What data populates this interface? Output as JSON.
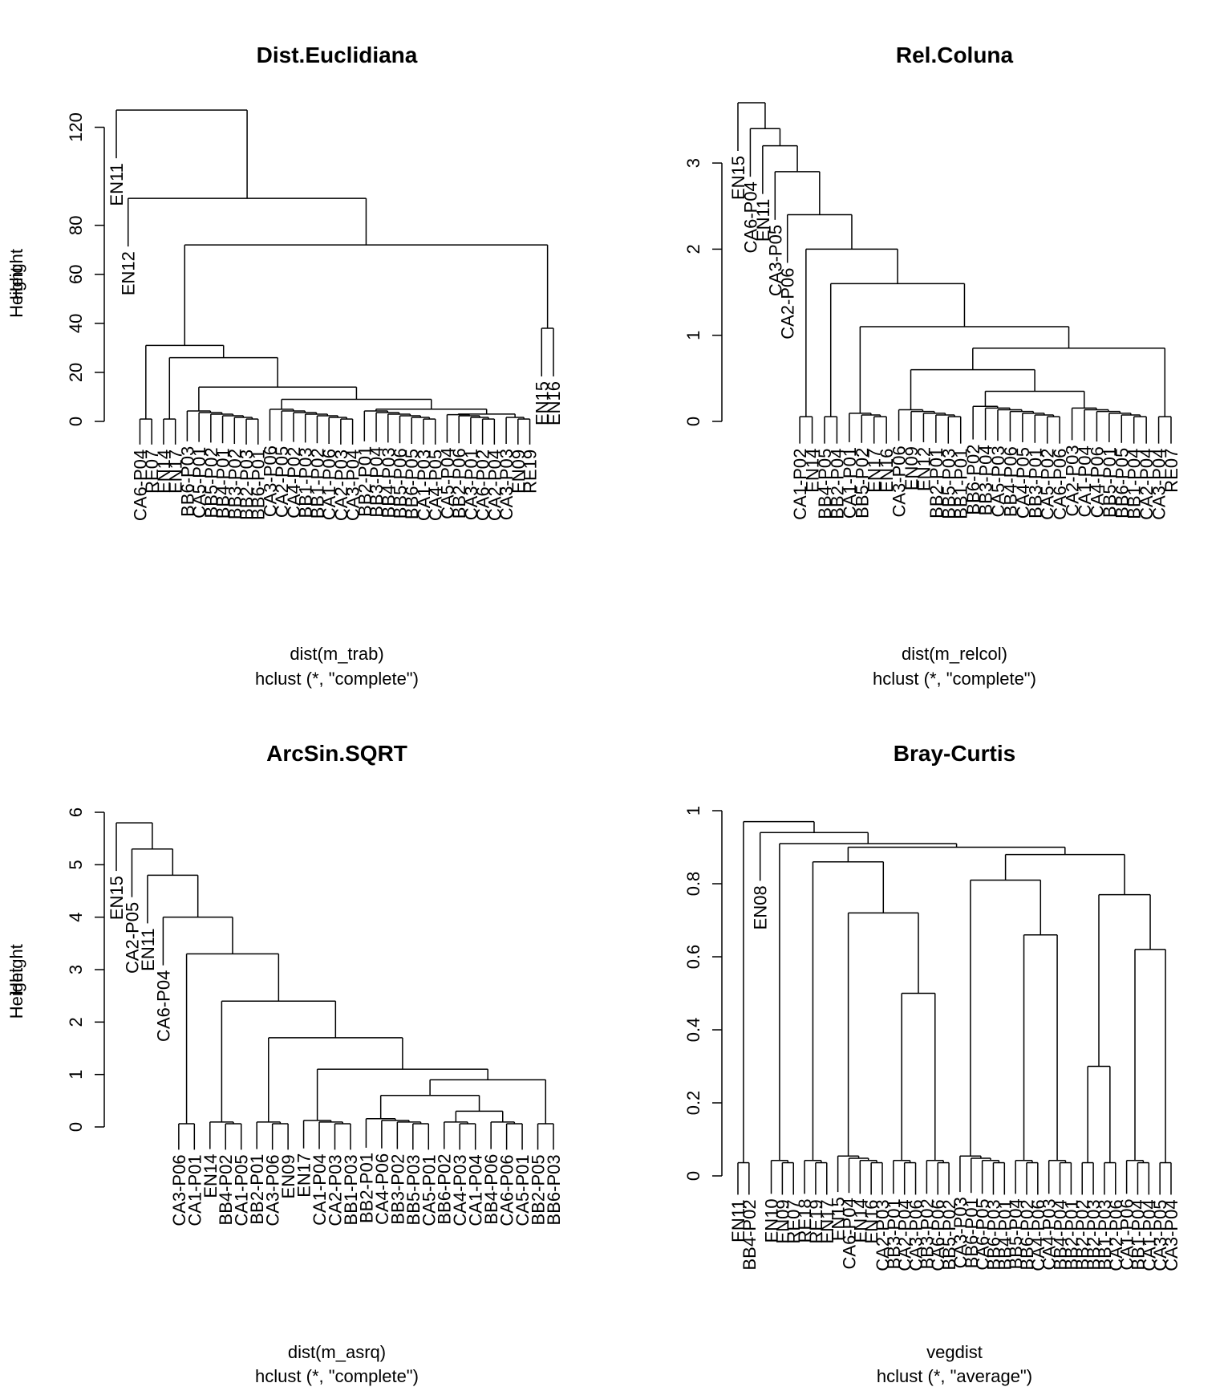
{
  "chart_data": [
    {
      "type": "dendrogram",
      "title": "Dist.Euclidiana",
      "ylabel": "Height",
      "xlabel": "dist(m_trab)",
      "sublabel": "hclust (*, \"complete\")",
      "ylim": [
        0,
        130
      ],
      "yticks": [
        0,
        20,
        40,
        60,
        80,
        120
      ],
      "leaves": [
        "EN11",
        "EN12",
        "CA6-P04",
        "RE07",
        "EN14",
        "EN17",
        "BB6-P03",
        "CA5-P01",
        "BB5-P02",
        "BB4-P01",
        "BB3-P02",
        "BB2-P03",
        "BB6-P01",
        "CA3-P06",
        "CA2-P05",
        "CA4-P02",
        "BB1-P03",
        "BB1-P02",
        "CA1-P06",
        "CA2-P03",
        "CA3-P04",
        "BB2-P01",
        "BB3-P04",
        "BB4-P03",
        "BB5-P06",
        "BB6-P05",
        "CA1-P03",
        "CA4-P05",
        "CA5-P04",
        "BB2-P06",
        "CA3-P01",
        "CA6-P02",
        "CA2-P04",
        "CA3-P03",
        "EN09",
        "RE19",
        "EN15",
        "EN16"
      ],
      "merges": [
        {
          "height": 127,
          "split": 0
        },
        {
          "height": 91,
          "split": 1
        },
        {
          "height": 72,
          "split": 35
        },
        {
          "height": 38,
          "split": 36
        },
        {
          "height": 31,
          "split": 3
        },
        {
          "height": 26,
          "split": 5
        },
        {
          "height": 14,
          "split": 12
        },
        {
          "height": 9,
          "split": 20
        },
        {
          "height": 5,
          "split": 27
        },
        {
          "height": 3,
          "split": 32
        }
      ]
    },
    {
      "type": "dendrogram",
      "title": "Rel.Coluna",
      "ylabel": "Height",
      "xlabel": "dist(m_relcol)",
      "sublabel": "hclust (*, \"complete\")",
      "ylim": [
        0,
        3.7
      ],
      "yticks": [
        0,
        1,
        2,
        3
      ],
      "leaves": [
        "EN15",
        "CA6-P04",
        "EN11",
        "CA3-P05",
        "CA2-P06",
        "CA1-P02",
        "EN14",
        "BB4-P05",
        "BB2-P04",
        "CA1-P01",
        "BB5-P02",
        "EN17",
        "EN16",
        "CA3-P06",
        "EN09",
        "EN12",
        "BB2-P01",
        "BB5-P03",
        "BB1-P01",
        "BB6-P02",
        "BB3-P04",
        "CA5-P03",
        "BB4-P06",
        "CA4-P05",
        "BB3-P01",
        "CA5-P02",
        "CA6-P06",
        "CA2-P03",
        "CA1-P04",
        "CA4-P06",
        "BB5-P01",
        "BB6-P05",
        "BB1-P04",
        "CA2-P04",
        "CA3-P04",
        "RE07"
      ],
      "merges": [
        {
          "height": 3.7,
          "split": 0
        },
        {
          "height": 3.4,
          "split": 1
        },
        {
          "height": 3.2,
          "split": 2
        },
        {
          "height": 2.9,
          "split": 3
        },
        {
          "height": 2.4,
          "split": 4
        },
        {
          "height": 2.0,
          "split": 6
        },
        {
          "height": 1.6,
          "split": 8
        },
        {
          "height": 1.1,
          "split": 12
        },
        {
          "height": 0.85,
          "split": 33
        },
        {
          "height": 0.6,
          "split": 18
        },
        {
          "height": 0.35,
          "split": 26
        }
      ]
    },
    {
      "type": "dendrogram",
      "title": "ArcSin.SQRT",
      "ylabel": "Height",
      "xlabel": "dist(m_asrq)",
      "sublabel": "hclust (*, \"complete\")",
      "ylim": [
        0,
        6
      ],
      "yticks": [
        0,
        1,
        2,
        3,
        4,
        5,
        6
      ],
      "leaves": [
        "EN15",
        "CA2-P05",
        "EN11",
        "CA6-P04",
        "CA3-P06",
        "CA1-P01",
        "EN14",
        "BB4-P02",
        "CA1-P05",
        "BB2-P01",
        "CA3-P06",
        "EN09",
        "EN17",
        "CA1-P04",
        "CA2-P03",
        "BB1-P03",
        "BB2-P01",
        "CA4-P06",
        "BB3-P02",
        "BB5-P03",
        "CA5-P01",
        "BB6-P02",
        "CA4-P03",
        "CA1-P04",
        "BB4-P06",
        "CA6-P06",
        "CA5-P01",
        "BB2-P05",
        "BB6-P03"
      ],
      "merges": [
        {
          "height": 5.8,
          "split": 0
        },
        {
          "height": 5.3,
          "split": 1
        },
        {
          "height": 4.8,
          "split": 2
        },
        {
          "height": 4.0,
          "split": 3
        },
        {
          "height": 3.3,
          "split": 5
        },
        {
          "height": 2.4,
          "split": 8
        },
        {
          "height": 1.7,
          "split": 11
        },
        {
          "height": 1.1,
          "split": 15
        },
        {
          "height": 0.9,
          "split": 26
        },
        {
          "height": 0.6,
          "split": 20
        },
        {
          "height": 0.3,
          "split": 23
        }
      ]
    },
    {
      "type": "dendrogram",
      "title": "Bray-Curtis",
      "ylabel": "Height",
      "xlabel": "vegdist",
      "sublabel": "hclust (*, \"average\")",
      "ylim": [
        0,
        1.0
      ],
      "yticks": [
        0.0,
        0.2,
        0.4,
        0.6,
        0.8,
        1.0
      ],
      "leaves": [
        "EN11",
        "BB4-P02",
        "EN08",
        "EN10",
        "EN09",
        "RE07",
        "RE18",
        "RE19",
        "EN17",
        "EN15",
        "CA6-P04",
        "EN14",
        "EN16",
        "CA2-P03",
        "BB3-P01",
        "CA2-P04",
        "CA3-P06",
        "BB3-P02",
        "CA6-P06",
        "BB5-P02",
        "CA3-P03",
        "BB6-P01",
        "CA6-P05",
        "BB6-P03",
        "BB4-P01",
        "BB5-P04",
        "BB6-P02",
        "CA4-P06",
        "CA4-P03",
        "BB4-P04",
        "BB2-P01",
        "BB2-P02",
        "BB2-P03",
        "BB1-P03",
        "CA2-P06",
        "CA1-P06",
        "BB1-P04",
        "CA1-P04",
        "CA3-P05",
        "CA3-P04"
      ],
      "merges": [
        {
          "height": 0.97,
          "split": 1
        },
        {
          "height": 0.94,
          "split": 2
        },
        {
          "height": 0.91,
          "split": 5
        },
        {
          "height": 0.9,
          "split": 19
        },
        {
          "height": 0.88,
          "split": 30
        },
        {
          "height": 0.86,
          "split": 8
        },
        {
          "height": 0.81,
          "split": 24
        },
        {
          "height": 0.77,
          "split": 34
        },
        {
          "height": 0.72,
          "split": 13
        },
        {
          "height": 0.66,
          "split": 27
        },
        {
          "height": 0.62,
          "split": 37
        },
        {
          "height": 0.5,
          "split": 16
        },
        {
          "height": 0.3,
          "split": 32
        }
      ]
    }
  ]
}
